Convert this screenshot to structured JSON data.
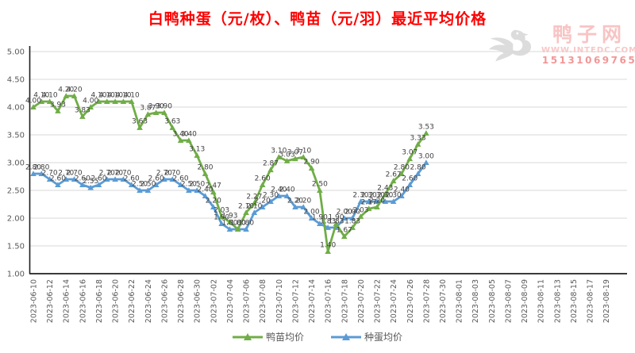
{
  "title": "白鸭种蛋（元/枚）、鸭苗（元/羽）最近平均价格",
  "watermark": {
    "site_name": "鸭子网",
    "url": "WWW.INTEDC.COM",
    "phone": "15131069765"
  },
  "chart_data": {
    "type": "line",
    "title": "白鸭种蛋（元/枚）、鸭苗（元/羽）最近平均价格",
    "ylim": [
      1.0,
      5.0
    ],
    "y_ticks": [
      "5.00",
      "4.50",
      "4.00",
      "3.50",
      "3.00",
      "2.50",
      "2.00",
      "1.50",
      "1.00"
    ],
    "grid": true,
    "legend_position": "bottom",
    "data_labels": true,
    "x_axis_ticks": [
      "2023-06-10",
      "2023-06-12",
      "2023-06-14",
      "2023-06-16",
      "2023-06-18",
      "2023-06-20",
      "2023-06-22",
      "2023-06-24",
      "2023-06-26",
      "2023-06-28",
      "2023-06-30",
      "2023-07-02",
      "2023-07-04",
      "2023-07-06",
      "2023-07-08",
      "2023-07-10",
      "2023-07-12",
      "2023-07-14",
      "2023-07-16",
      "2023-07-18",
      "2023-07-20",
      "2023-07-22",
      "2023-07-24",
      "2023-07-26",
      "2023-07-28",
      "2023-07-30",
      "2023-08-01",
      "2023-08-03",
      "2023-08-05",
      "2023-08-07",
      "2023-08-09",
      "2023-08-11",
      "2023-08-13",
      "2023-08-15",
      "2023-08-17",
      "2023-08-19"
    ],
    "x": [
      "2023-06-10",
      "2023-06-11",
      "2023-06-12",
      "2023-06-13",
      "2023-06-14",
      "2023-06-15",
      "2023-06-16",
      "2023-06-17",
      "2023-06-18",
      "2023-06-19",
      "2023-06-20",
      "2023-06-21",
      "2023-06-22",
      "2023-06-23",
      "2023-06-24",
      "2023-06-25",
      "2023-06-26",
      "2023-06-27",
      "2023-06-28",
      "2023-06-29",
      "2023-06-30",
      "2023-07-01",
      "2023-07-02",
      "2023-07-03",
      "2023-07-04",
      "2023-07-05",
      "2023-07-06",
      "2023-07-07",
      "2023-07-08",
      "2023-07-09",
      "2023-07-10",
      "2023-07-11",
      "2023-07-12",
      "2023-07-13",
      "2023-07-14",
      "2023-07-15",
      "2023-07-16",
      "2023-07-17",
      "2023-07-18",
      "2023-07-19",
      "2023-07-20",
      "2023-07-21",
      "2023-07-22",
      "2023-07-23",
      "2023-07-24",
      "2023-07-25",
      "2023-07-26",
      "2023-07-27",
      "2023-07-28"
    ],
    "series": [
      {
        "name": "鸭苗均价",
        "color": "#70AD47",
        "values": [
          4.0,
          4.1,
          4.1,
          3.93,
          4.2,
          4.2,
          3.83,
          4.0,
          4.1,
          4.1,
          4.1,
          4.1,
          4.1,
          3.63,
          3.87,
          3.9,
          3.9,
          3.63,
          3.4,
          3.4,
          3.13,
          2.8,
          2.47,
          2.03,
          1.93,
          1.8,
          2.1,
          2.27,
          2.6,
          2.87,
          3.1,
          3.03,
          3.07,
          3.1,
          2.9,
          2.5,
          1.4,
          1.9,
          1.67,
          1.83,
          2.03,
          2.17,
          2.2,
          2.43,
          2.67,
          2.8,
          3.07,
          3.33,
          3.53
        ]
      },
      {
        "name": "种蛋均价",
        "color": "#5B9BD5",
        "values": [
          2.8,
          2.8,
          2.7,
          2.6,
          2.7,
          2.7,
          2.6,
          2.55,
          2.6,
          2.7,
          2.7,
          2.7,
          2.6,
          2.5,
          2.5,
          2.6,
          2.7,
          2.7,
          2.6,
          2.5,
          2.5,
          2.4,
          2.2,
          1.9,
          1.8,
          1.8,
          1.8,
          2.1,
          2.2,
          2.3,
          2.4,
          2.4,
          2.2,
          2.2,
          2.0,
          1.9,
          1.83,
          1.83,
          2.0,
          2.0,
          2.3,
          2.3,
          2.3,
          2.3,
          2.3,
          2.4,
          2.6,
          2.8,
          3.0
        ]
      }
    ]
  }
}
